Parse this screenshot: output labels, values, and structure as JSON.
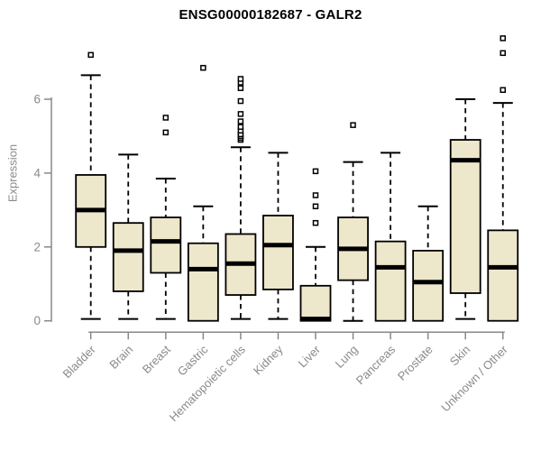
{
  "chart_data": {
    "type": "boxplot",
    "title": "ENSG00000182687 - GALR2",
    "ylabel": "Expression",
    "xlabel": "",
    "yticks": [
      0,
      2,
      4,
      6
    ],
    "ylim": [
      -0.3,
      7.9
    ],
    "grid": false,
    "legend": false,
    "categories": [
      "Bladder",
      "Brain",
      "Breast",
      "Gastric",
      "Hematopoietic cells",
      "Kidney",
      "Liver",
      "Lung",
      "Pancreas",
      "Prostate",
      "Skin",
      "Unknown / Other"
    ],
    "boxes": [
      {
        "label": "Bladder",
        "whisker_low": 0.05,
        "q1": 2.0,
        "median": 3.0,
        "q3": 3.95,
        "whisker_high": 6.65,
        "outliers": [
          7.2
        ]
      },
      {
        "label": "Brain",
        "whisker_low": 0.05,
        "q1": 0.8,
        "median": 1.9,
        "q3": 2.65,
        "whisker_high": 4.5,
        "outliers": []
      },
      {
        "label": "Breast",
        "whisker_low": 0.05,
        "q1": 1.3,
        "median": 2.15,
        "q3": 2.8,
        "whisker_high": 3.85,
        "outliers": [
          5.1,
          5.5
        ]
      },
      {
        "label": "Gastric",
        "whisker_low": 0.0,
        "q1": 0.0,
        "median": 1.4,
        "q3": 2.1,
        "whisker_high": 3.1,
        "outliers": [
          6.85
        ]
      },
      {
        "label": "Hematopoietic cells",
        "whisker_low": 0.05,
        "q1": 0.7,
        "median": 1.55,
        "q3": 2.35,
        "whisker_high": 4.7,
        "outliers": [
          4.9,
          4.95,
          5.0,
          5.05,
          5.15,
          5.25,
          5.4,
          5.6,
          5.95,
          6.3,
          6.45,
          6.55
        ]
      },
      {
        "label": "Kidney",
        "whisker_low": 0.05,
        "q1": 0.85,
        "median": 2.05,
        "q3": 2.85,
        "whisker_high": 4.55,
        "outliers": []
      },
      {
        "label": "Liver",
        "whisker_low": 0.0,
        "q1": 0.0,
        "median": 0.05,
        "q3": 0.95,
        "whisker_high": 2.0,
        "outliers": [
          2.65,
          3.1,
          3.4,
          4.05
        ]
      },
      {
        "label": "Lung",
        "whisker_low": 0.0,
        "q1": 1.1,
        "median": 1.95,
        "q3": 2.8,
        "whisker_high": 4.3,
        "outliers": [
          5.3
        ]
      },
      {
        "label": "Pancreas",
        "whisker_low": 0.0,
        "q1": 0.0,
        "median": 1.45,
        "q3": 2.15,
        "whisker_high": 4.55,
        "outliers": []
      },
      {
        "label": "Prostate",
        "whisker_low": 0.0,
        "q1": 0.0,
        "median": 1.05,
        "q3": 1.9,
        "whisker_high": 3.1,
        "outliers": []
      },
      {
        "label": "Skin",
        "whisker_low": 0.05,
        "q1": 0.75,
        "median": 4.35,
        "q3": 4.9,
        "whisker_high": 6.0,
        "outliers": []
      },
      {
        "label": "Unknown / Other",
        "whisker_low": 0.0,
        "q1": 0.0,
        "median": 1.45,
        "q3": 2.45,
        "whisker_high": 5.9,
        "outliers": [
          6.25,
          7.25,
          7.65
        ]
      }
    ],
    "colors": {
      "box_fill": "#EDE7CB",
      "box_stroke": "#000000",
      "median": "#000000",
      "whisker": "#000000",
      "outlier_stroke": "#000000",
      "outlier_fill": "#ffffff",
      "axis_line": "#888888",
      "tick_label": "#8a8a8a",
      "title": "#000000",
      "background": "#ffffff"
    }
  }
}
